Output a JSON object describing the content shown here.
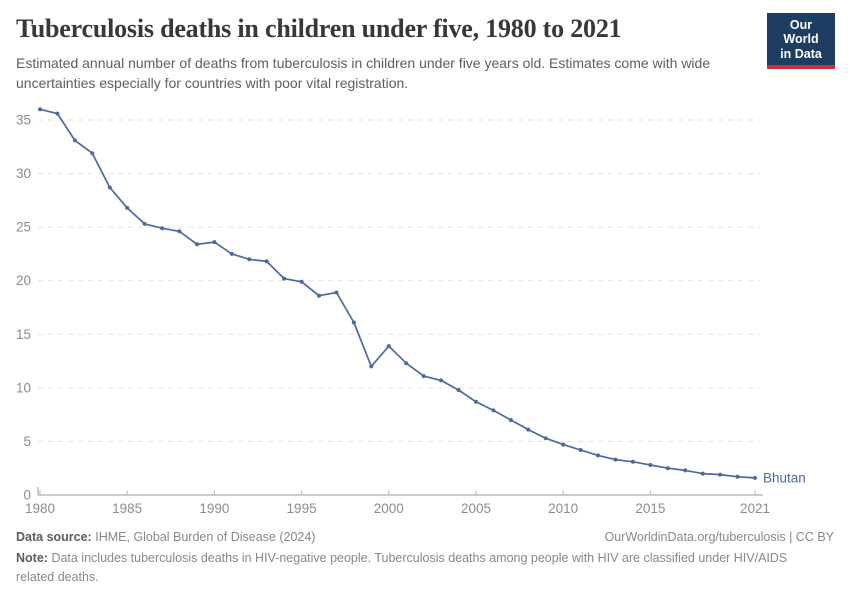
{
  "header": {
    "title": "Tuberculosis deaths in children under five, 1980 to 2021",
    "subtitle": "Estimated annual number of deaths from tuberculosis in children under five years old. Estimates come with wide uncertainties especially for countries with poor vital registration.",
    "logo": {
      "line1": "Our World",
      "line2": "in Data",
      "bg_color": "#1d3d63",
      "bar_color": "#cf2e41"
    }
  },
  "chart_data": {
    "type": "line",
    "title": "Tuberculosis deaths in children under five, 1980 to 2021",
    "x": [
      1980,
      1981,
      1982,
      1983,
      1984,
      1985,
      1986,
      1987,
      1988,
      1989,
      1990,
      1991,
      1992,
      1993,
      1994,
      1995,
      1996,
      1997,
      1998,
      1999,
      2000,
      2001,
      2002,
      2003,
      2004,
      2005,
      2006,
      2007,
      2008,
      2009,
      2010,
      2011,
      2012,
      2013,
      2014,
      2015,
      2016,
      2017,
      2018,
      2019,
      2020,
      2021
    ],
    "series": [
      {
        "name": "Bhutan",
        "color": "#4c6a9c",
        "values": [
          36.0,
          35.6,
          33.1,
          31.9,
          28.7,
          26.8,
          25.3,
          24.9,
          24.6,
          23.4,
          23.6,
          22.5,
          22.0,
          21.8,
          20.2,
          19.9,
          18.6,
          18.9,
          16.1,
          12.0,
          13.9,
          12.3,
          11.1,
          10.7,
          9.8,
          8.7,
          7.9,
          7.0,
          6.1,
          5.3,
          4.7,
          4.2,
          3.7,
          3.3,
          3.1,
          2.8,
          2.5,
          2.3,
          2.0,
          1.9,
          1.7,
          1.6
        ]
      }
    ],
    "xlabel": "",
    "ylabel": "",
    "ylim": [
      0,
      35
    ],
    "yticks": [
      0,
      5,
      10,
      15,
      20,
      25,
      30,
      35
    ],
    "xticks": [
      1980,
      1985,
      1990,
      1995,
      2000,
      2005,
      2010,
      2015,
      2021
    ],
    "grid": "horizontal-dashed",
    "legend": "end-of-line-label",
    "colors": {
      "grid": "#e3e3e3",
      "axis": "#9a9a9a",
      "tick": "#b9b9b9",
      "tick_label": "#8c8c8c"
    }
  },
  "footer": {
    "source_label": "Data source:",
    "source_value": "IHME, Global Burden of Disease (2024)",
    "attribution": "OurWorldinData.org/tuberculosis | CC BY",
    "note_label": "Note:",
    "note_value": "Data includes tuberculosis deaths in HIV-negative people. Tuberculosis deaths among people with HIV are classified under HIV/AIDS related deaths."
  }
}
